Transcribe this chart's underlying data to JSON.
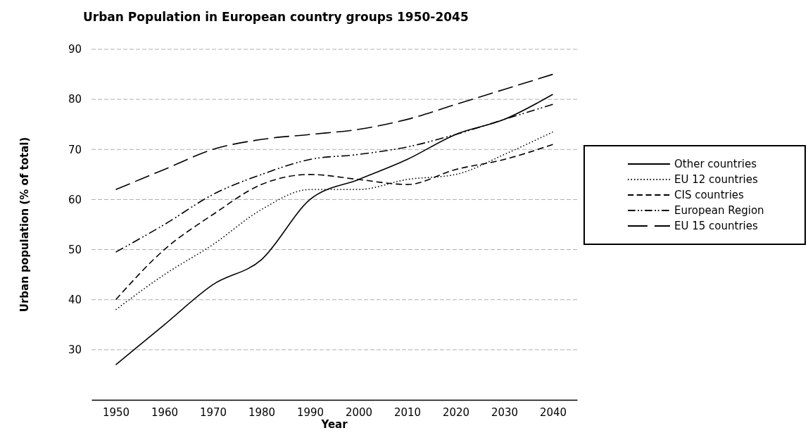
{
  "chart_data": {
    "type": "line",
    "title": "Urban Population in European country groups 1950-2045",
    "xlabel": "Year",
    "ylabel": "Urban population (% of total)",
    "x": [
      1950,
      1960,
      1970,
      1980,
      1990,
      2000,
      2010,
      2020,
      2030,
      2040
    ],
    "xlim": [
      1945,
      2045
    ],
    "xticks": [
      1950,
      1960,
      1970,
      1980,
      1990,
      2000,
      2010,
      2020,
      2030,
      2040
    ],
    "ylim": [
      20,
      90
    ],
    "yticks": [
      30,
      40,
      50,
      60,
      70,
      80,
      90
    ],
    "grid": "y",
    "legend": "right",
    "marker": "none",
    "series": [
      {
        "name": "Other countries",
        "color": "#000000",
        "line_style": "solid",
        "values": [
          27,
          35,
          43,
          48,
          60,
          64,
          68,
          73,
          76,
          81
        ]
      },
      {
        "name": "EU 12 countries",
        "color": "#000000",
        "line_style": "dotted",
        "values": [
          38,
          45,
          51,
          58,
          62,
          62,
          64,
          65,
          69,
          73.5
        ]
      },
      {
        "name": "CIS countries",
        "color": "#000000",
        "line_style": "dashed",
        "values": [
          40,
          50,
          57,
          63,
          65,
          64,
          63,
          66,
          68,
          71
        ]
      },
      {
        "name": "European Region",
        "color": "#000000",
        "line_style": "dashdotdot",
        "values": [
          49.5,
          55,
          61,
          65,
          68,
          69,
          70.5,
          73,
          76,
          79
        ]
      },
      {
        "name": "EU 15 countries",
        "color": "#000000",
        "line_style": "longdash",
        "values": [
          62,
          66,
          70,
          72,
          73,
          74,
          76,
          79,
          82,
          85
        ]
      }
    ]
  }
}
